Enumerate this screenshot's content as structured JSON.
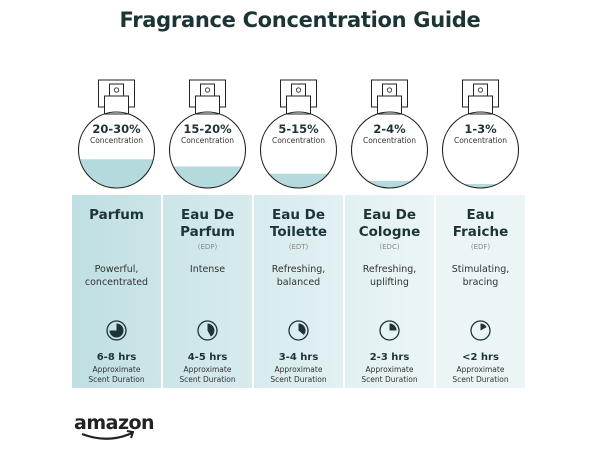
{
  "title": "Fragrance Concentration Guide",
  "concentration_label": "Concentration",
  "approx_label_1": "Approximate",
  "approx_label_2": "Scent Duration",
  "colors": {
    "text": "#1d3437",
    "liquid": "#b5dadd",
    "panel_left": "#bfdfe2",
    "panel_right": "#eef6f8",
    "clock": "#1d3437"
  },
  "types": [
    {
      "concentration": "20-30%",
      "name_1": "Parfum",
      "name_2": "",
      "abbr": "",
      "desc_1": "Powerful,",
      "desc_2": "concentrated",
      "duration": "6-8 hrs",
      "fill_level": 0.36,
      "clock_fraction": 0.75
    },
    {
      "concentration": "15-20%",
      "name_1": "Eau De",
      "name_2": "Parfum",
      "abbr": "(EDP)",
      "desc_1": "Intense",
      "desc_2": "",
      "duration": "4-5 hrs",
      "fill_level": 0.27,
      "clock_fraction": 0.42
    },
    {
      "concentration": "5-15%",
      "name_1": "Eau De",
      "name_2": "Toilette",
      "abbr": "(EDT)",
      "desc_1": "Refreshing,",
      "desc_2": "balanced",
      "duration": "3-4 hrs",
      "fill_level": 0.18,
      "clock_fraction": 0.36
    },
    {
      "concentration": "2-4%",
      "name_1": "Eau De",
      "name_2": "Cologne",
      "abbr": "(EDC)",
      "desc_1": "Refreshing,",
      "desc_2": "uplifting",
      "duration": "2-3 hrs",
      "fill_level": 0.09,
      "clock_fraction": 0.25
    },
    {
      "concentration": "1-3%",
      "name_1": "Eau",
      "name_2": "Fraiche",
      "abbr": "(EDF)",
      "desc_1": "Stimulating,",
      "desc_2": "bracing",
      "duration": "<2 hrs",
      "fill_level": 0.05,
      "clock_fraction": 0.17
    }
  ],
  "logo": "amazon"
}
